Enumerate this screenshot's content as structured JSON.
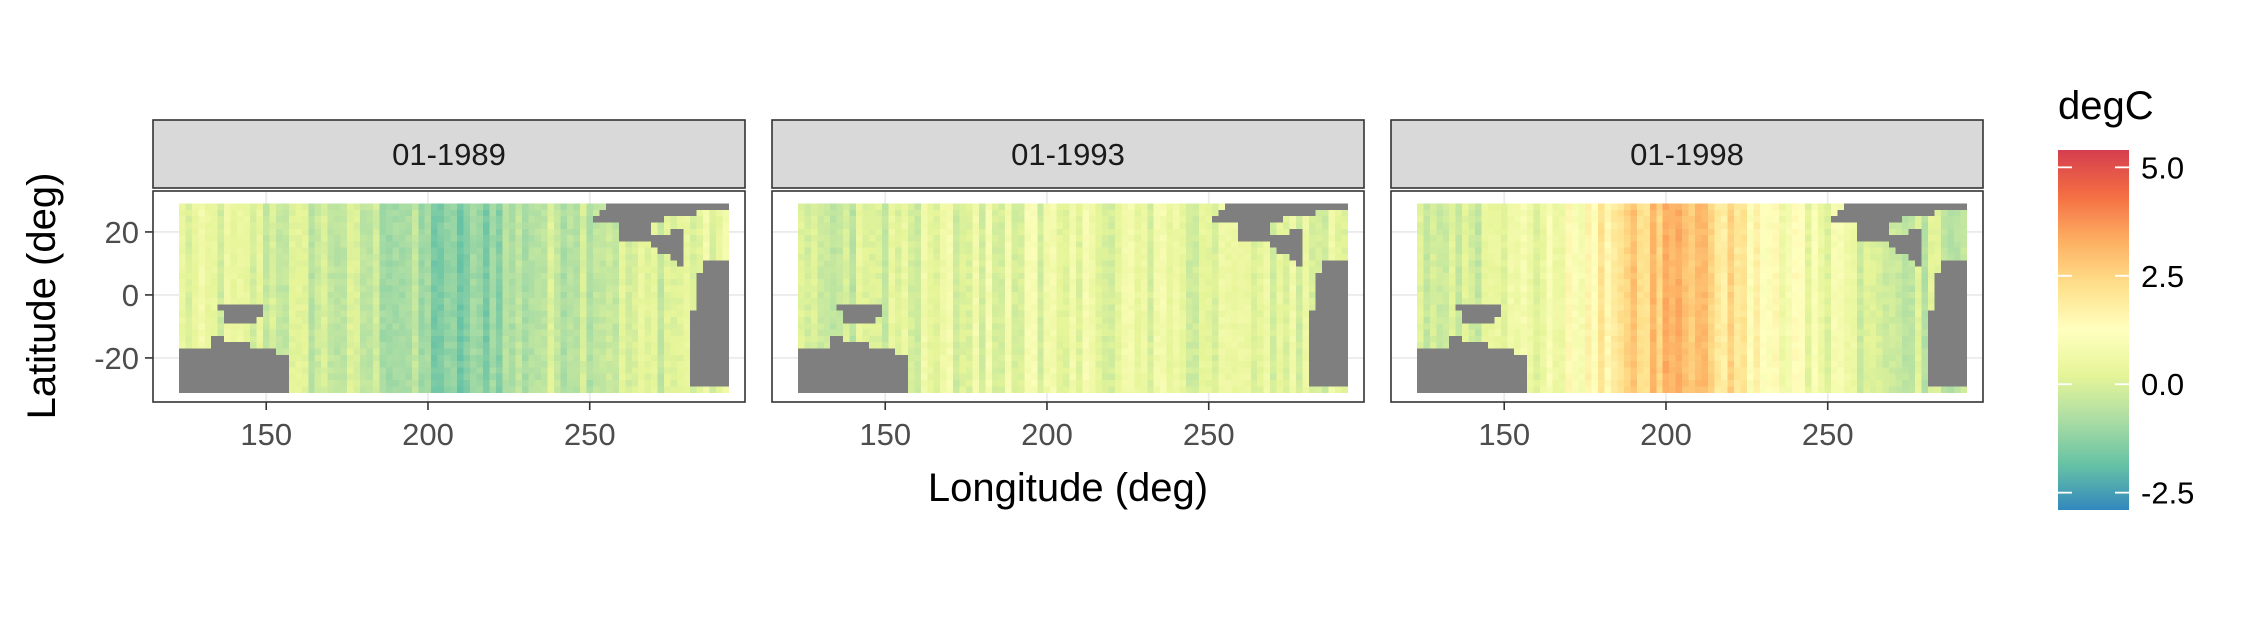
{
  "chart_data": {
    "type": "heatmap",
    "xlabel": "Longitude (deg)",
    "ylabel": "Latitude (deg)",
    "xlim": [
      115,
      298
    ],
    "ylim": [
      -34,
      33
    ],
    "x_ticks": [
      150,
      200,
      250
    ],
    "y_ticks": [
      20,
      0,
      -20
    ],
    "x_tick_labels": [
      "150",
      "200",
      "250"
    ],
    "y_tick_labels": [
      "20",
      "0",
      "-20"
    ],
    "grid": true,
    "legend_position": "right",
    "legend": {
      "title": "degC",
      "range": [
        -2.9,
        5.4
      ],
      "breaks": [
        5.0,
        2.5,
        0.0,
        -2.5
      ],
      "break_labels": [
        "5.0",
        "2.5",
        "0.0",
        "-2.5"
      ],
      "colors": [
        "#3288bd",
        "#66c2a5",
        "#abdda4",
        "#e6f598",
        "#ffffbf",
        "#fee08b",
        "#fdae61",
        "#f46d43",
        "#d53e4f"
      ]
    },
    "land_color": "#7f7f7f",
    "grid_spec": {
      "lon_range": [
        123,
        291
      ],
      "lat_range": [
        -29,
        29
      ],
      "cell_deg": 2
    },
    "panels": [
      {
        "label": "01-1989",
        "lon_anomaly_profile": [
          [
            124,
            0.2
          ],
          [
            140,
            0.1
          ],
          [
            160,
            -0.2
          ],
          [
            180,
            -0.4
          ],
          [
            195,
            -0.9
          ],
          [
            205,
            -1.6
          ],
          [
            215,
            -1.3
          ],
          [
            225,
            -0.7
          ],
          [
            240,
            -0.3
          ],
          [
            260,
            -0.1
          ],
          [
            280,
            0.2
          ],
          [
            291,
            0.3
          ]
        ]
      },
      {
        "label": "01-1993",
        "lon_anomaly_profile": [
          [
            124,
            -0.4
          ],
          [
            145,
            0.0
          ],
          [
            170,
            0.3
          ],
          [
            200,
            0.4
          ],
          [
            230,
            0.3
          ],
          [
            260,
            0.2
          ],
          [
            280,
            0.1
          ],
          [
            291,
            0.2
          ]
        ]
      },
      {
        "label": "01-1998",
        "lon_anomaly_profile": [
          [
            124,
            -0.3
          ],
          [
            140,
            0.0
          ],
          [
            160,
            0.6
          ],
          [
            175,
            1.4
          ],
          [
            185,
            2.3
          ],
          [
            195,
            2.8
          ],
          [
            205,
            3.0
          ],
          [
            215,
            2.5
          ],
          [
            225,
            1.6
          ],
          [
            240,
            0.8
          ],
          [
            260,
            0.2
          ],
          [
            280,
            -0.2
          ],
          [
            291,
            -0.5
          ]
        ]
      }
    ]
  }
}
